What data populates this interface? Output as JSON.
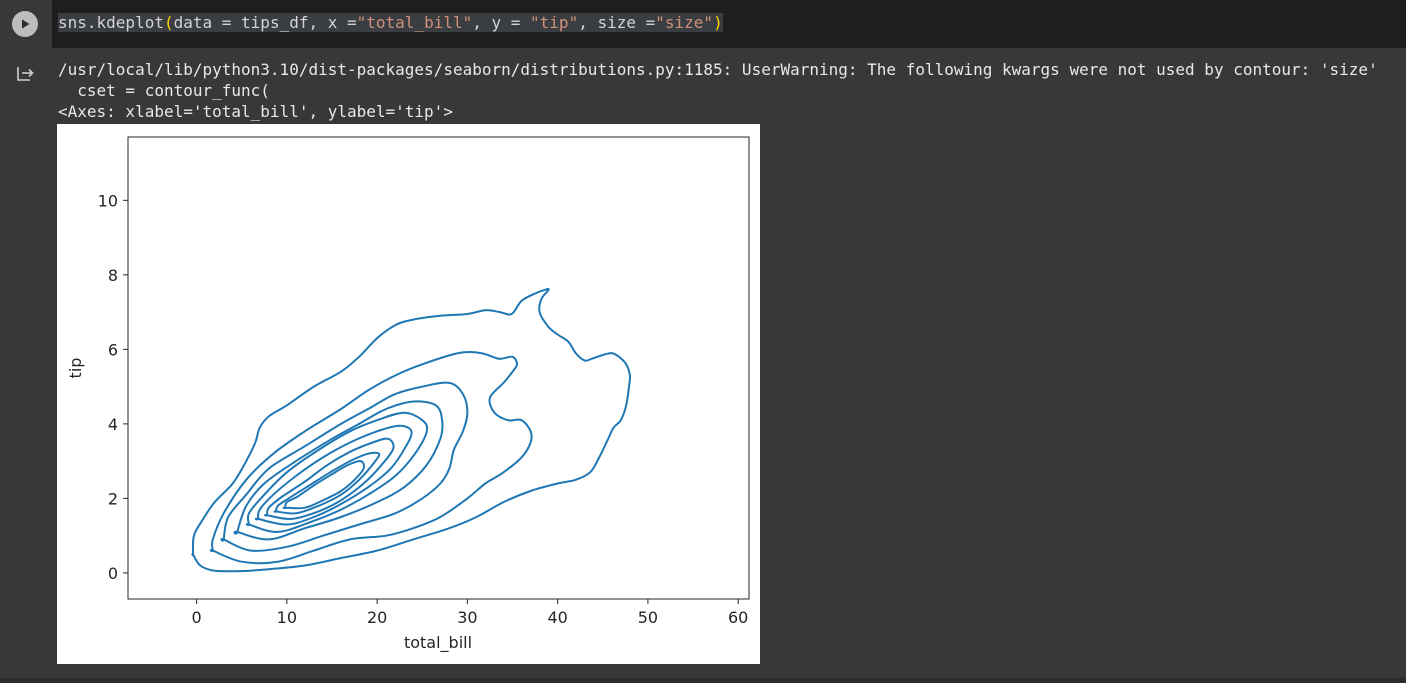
{
  "code_cell": {
    "tokens": [
      {
        "text": "sns.kdeplot",
        "cls": "tok-plain"
      },
      {
        "text": "(",
        "cls": "tok-paren-a"
      },
      {
        "text": "data = tips_df, x =",
        "cls": "tok-plain"
      },
      {
        "text": "\"total_bill\"",
        "cls": "tok-str"
      },
      {
        "text": ", y = ",
        "cls": "tok-plain"
      },
      {
        "text": "\"tip\"",
        "cls": "tok-str"
      },
      {
        "text": ", size =",
        "cls": "tok-plain"
      },
      {
        "text": "\"size\"",
        "cls": "tok-str"
      },
      {
        "text": ")",
        "cls": "tok-paren-a"
      }
    ]
  },
  "output": {
    "warning_line_1": "/usr/local/lib/python3.10/dist-packages/seaborn/distributions.py:1185: UserWarning: The following kwargs were not used by contour: 'size'",
    "warning_line_2": "  cset = contour_func(",
    "axes_repr": "<Axes: xlabel='total_bill', ylabel='tip'>"
  },
  "colors": {
    "background": "#383838",
    "editor": "#1e1e1e",
    "contour": "#1f77b4"
  },
  "icons": {
    "run": "play-circle-icon",
    "output": "output-arrow-icon"
  },
  "chart_data": {
    "type": "kde-contour",
    "xlabel": "total_bill",
    "ylabel": "tip",
    "xlim": [
      -7.6,
      61.2
    ],
    "ylim": [
      -0.7,
      11.7
    ],
    "xticks": [
      0,
      10,
      20,
      30,
      40,
      50,
      60
    ],
    "yticks": [
      0,
      2,
      4,
      6,
      8,
      10
    ],
    "grid": false,
    "contour_levels": [
      {
        "name": "level-1",
        "points": [
          [
            -0.4,
            0.5
          ],
          [
            0.4,
            0.2
          ],
          [
            2,
            0.06
          ],
          [
            5,
            0.05
          ],
          [
            8,
            0.1
          ],
          [
            12,
            0.2
          ],
          [
            16,
            0.4
          ],
          [
            20,
            0.6
          ],
          [
            24,
            0.9
          ],
          [
            28,
            1.2
          ],
          [
            31,
            1.5
          ],
          [
            34,
            1.9
          ],
          [
            37,
            2.2
          ],
          [
            40,
            2.4
          ],
          [
            42,
            2.5
          ],
          [
            43.6,
            2.7
          ],
          [
            44.6,
            3.1
          ],
          [
            45.6,
            3.6
          ],
          [
            46.2,
            3.9
          ],
          [
            47,
            4.1
          ],
          [
            47.6,
            4.5
          ],
          [
            47.9,
            5.0
          ],
          [
            48,
            5.3
          ],
          [
            47.6,
            5.6
          ],
          [
            46.8,
            5.8
          ],
          [
            46,
            5.9
          ],
          [
            45,
            5.85
          ],
          [
            43.8,
            5.75
          ],
          [
            43,
            5.7
          ],
          [
            42,
            5.9
          ],
          [
            41.2,
            6.2
          ],
          [
            40,
            6.4
          ],
          [
            39,
            6.6
          ],
          [
            38,
            7.0
          ],
          [
            38.2,
            7.35
          ],
          [
            39,
            7.6
          ],
          [
            38.6,
            7.6
          ],
          [
            37.5,
            7.5
          ],
          [
            36,
            7.3
          ],
          [
            34.9,
            6.95
          ],
          [
            33.6,
            7.0
          ],
          [
            32,
            7.05
          ],
          [
            30,
            6.95
          ],
          [
            27,
            6.9
          ],
          [
            24,
            6.8
          ],
          [
            22,
            6.65
          ],
          [
            20,
            6.3
          ],
          [
            18,
            5.8
          ],
          [
            16,
            5.4
          ],
          [
            13,
            5.0
          ],
          [
            10,
            4.5
          ],
          [
            8,
            4.2
          ],
          [
            7,
            3.9
          ],
          [
            6.5,
            3.5
          ],
          [
            5.5,
            3.0
          ],
          [
            4,
            2.4
          ],
          [
            2,
            1.9
          ],
          [
            0.6,
            1.4
          ],
          [
            -0.3,
            1.0
          ],
          [
            -0.4,
            0.5
          ]
        ]
      },
      {
        "name": "level-2",
        "points": [
          [
            1.8,
            0.6
          ],
          [
            5,
            0.3
          ],
          [
            9,
            0.3
          ],
          [
            13,
            0.6
          ],
          [
            17,
            0.9
          ],
          [
            21,
            1.0
          ],
          [
            24,
            1.2
          ],
          [
            27,
            1.5
          ],
          [
            30,
            2.0
          ],
          [
            32,
            2.4
          ],
          [
            34,
            2.7
          ],
          [
            36,
            3.1
          ],
          [
            37,
            3.5
          ],
          [
            37,
            3.8
          ],
          [
            36,
            4.1
          ],
          [
            34.5,
            4.1
          ],
          [
            33,
            4.3
          ],
          [
            32.5,
            4.7
          ],
          [
            34,
            5.1
          ],
          [
            35,
            5.4
          ],
          [
            35.5,
            5.6
          ],
          [
            35,
            5.8
          ],
          [
            33.5,
            5.75
          ],
          [
            31.5,
            5.9
          ],
          [
            29,
            5.9
          ],
          [
            25,
            5.6
          ],
          [
            22,
            5.3
          ],
          [
            19,
            4.9
          ],
          [
            16,
            4.4
          ],
          [
            12,
            3.8
          ],
          [
            8.5,
            3.2
          ],
          [
            5.5,
            2.5
          ],
          [
            3,
            1.6
          ],
          [
            1.8,
            0.9
          ],
          [
            1.8,
            0.6
          ]
        ]
      },
      {
        "name": "level-3",
        "points": [
          [
            3,
            0.9
          ],
          [
            6,
            0.6
          ],
          [
            10,
            0.7
          ],
          [
            14,
            1.0
          ],
          [
            18,
            1.3
          ],
          [
            22,
            1.6
          ],
          [
            25,
            2.0
          ],
          [
            27,
            2.4
          ],
          [
            28,
            2.8
          ],
          [
            28.5,
            3.3
          ],
          [
            29.5,
            3.8
          ],
          [
            30,
            4.3
          ],
          [
            29.5,
            4.8
          ],
          [
            28,
            5.1
          ],
          [
            25,
            5.0
          ],
          [
            22,
            4.8
          ],
          [
            19,
            4.4
          ],
          [
            16,
            4.0
          ],
          [
            12,
            3.4
          ],
          [
            8,
            2.8
          ],
          [
            5.5,
            2.1
          ],
          [
            3.5,
            1.5
          ],
          [
            3,
            0.9
          ]
        ]
      },
      {
        "name": "level-4",
        "points": [
          [
            4.5,
            1.1
          ],
          [
            8,
            0.9
          ],
          [
            12,
            1.2
          ],
          [
            16,
            1.5
          ],
          [
            20,
            1.9
          ],
          [
            23,
            2.3
          ],
          [
            25.5,
            2.9
          ],
          [
            27,
            3.6
          ],
          [
            27.2,
            4.1
          ],
          [
            26.5,
            4.5
          ],
          [
            24,
            4.6
          ],
          [
            21,
            4.4
          ],
          [
            18,
            4.0
          ],
          [
            15,
            3.6
          ],
          [
            11,
            3.0
          ],
          [
            7.5,
            2.4
          ],
          [
            5.5,
            1.8
          ],
          [
            4.5,
            1.1
          ]
        ]
      },
      {
        "name": "level-5",
        "points": [
          [
            5.8,
            1.3
          ],
          [
            9,
            1.1
          ],
          [
            13,
            1.4
          ],
          [
            16,
            1.7
          ],
          [
            19,
            2.1
          ],
          [
            22,
            2.6
          ],
          [
            24.2,
            3.2
          ],
          [
            25.5,
            3.8
          ],
          [
            25,
            4.1
          ],
          [
            23,
            4.3
          ],
          [
            20,
            4.1
          ],
          [
            17,
            3.8
          ],
          [
            13.5,
            3.3
          ],
          [
            10,
            2.7
          ],
          [
            7.5,
            2.1
          ],
          [
            5.8,
            1.6
          ],
          [
            5.8,
            1.3
          ]
        ]
      },
      {
        "name": "level-6",
        "points": [
          [
            6.8,
            1.45
          ],
          [
            10,
            1.3
          ],
          [
            13,
            1.5
          ],
          [
            16,
            1.85
          ],
          [
            19,
            2.3
          ],
          [
            21.5,
            2.8
          ],
          [
            23.2,
            3.4
          ],
          [
            23.8,
            3.8
          ],
          [
            22.5,
            3.95
          ],
          [
            20,
            3.8
          ],
          [
            17,
            3.5
          ],
          [
            14,
            3.1
          ],
          [
            11,
            2.6
          ],
          [
            8.5,
            2.1
          ],
          [
            7,
            1.7
          ],
          [
            6.8,
            1.45
          ]
        ]
      },
      {
        "name": "level-7",
        "points": [
          [
            7.8,
            1.55
          ],
          [
            10.5,
            1.45
          ],
          [
            13.5,
            1.65
          ],
          [
            16,
            1.95
          ],
          [
            18.5,
            2.4
          ],
          [
            20.5,
            2.9
          ],
          [
            21.8,
            3.35
          ],
          [
            21.2,
            3.6
          ],
          [
            19.5,
            3.5
          ],
          [
            17,
            3.25
          ],
          [
            14.5,
            2.9
          ],
          [
            12,
            2.45
          ],
          [
            9.5,
            2.05
          ],
          [
            8,
            1.75
          ],
          [
            7.8,
            1.55
          ]
        ]
      },
      {
        "name": "level-8",
        "points": [
          [
            8.8,
            1.65
          ],
          [
            11,
            1.6
          ],
          [
            13.5,
            1.8
          ],
          [
            16,
            2.1
          ],
          [
            18,
            2.5
          ],
          [
            19.8,
            3.0
          ],
          [
            20.2,
            3.2
          ],
          [
            19,
            3.2
          ],
          [
            17,
            3.0
          ],
          [
            14.8,
            2.7
          ],
          [
            12.5,
            2.35
          ],
          [
            10.2,
            2.0
          ],
          [
            9,
            1.8
          ],
          [
            8.8,
            1.65
          ]
        ]
      },
      {
        "name": "level-9",
        "points": [
          [
            9.8,
            1.75
          ],
          [
            12,
            1.75
          ],
          [
            14,
            1.95
          ],
          [
            16,
            2.2
          ],
          [
            17.5,
            2.5
          ],
          [
            18.5,
            2.8
          ],
          [
            18.2,
            3.0
          ],
          [
            16.8,
            2.9
          ],
          [
            15,
            2.65
          ],
          [
            13,
            2.35
          ],
          [
            11.2,
            2.05
          ],
          [
            10,
            1.9
          ],
          [
            9.8,
            1.75
          ]
        ]
      }
    ]
  }
}
